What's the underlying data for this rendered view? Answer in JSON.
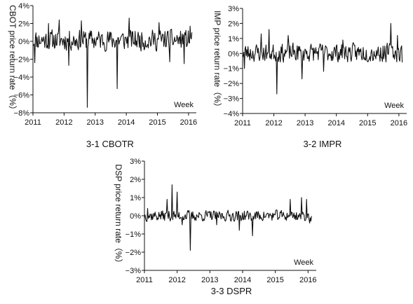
{
  "chart_data": [
    {
      "id": "cbotr",
      "type": "line",
      "ylabel": "CBOT price return rate（%）",
      "caption": "3-1 CBOTR",
      "week_label": "Week",
      "ylim": [
        -8,
        4
      ],
      "yticks": [
        -8,
        -6,
        -4,
        -2,
        0,
        2,
        4
      ],
      "ytick_labels": [
        "−8%",
        "−6%",
        "−4%",
        "−2%",
        "0%",
        "2%",
        "4%"
      ],
      "xlim": [
        2011,
        2016.25
      ],
      "xticks": [
        2011,
        2012,
        2013,
        2014,
        2015,
        2016
      ],
      "xtick_labels": [
        "2011",
        "2012",
        "2013",
        "2014",
        "2015",
        "2016"
      ],
      "x_start": 2011.0,
      "x_step": 0.0192,
      "amp": 0.85,
      "offset": 0.15,
      "seed": 11,
      "spikes": [
        {
          "x": 2011.05,
          "y": -2.4
        },
        {
          "x": 2011.5,
          "y": 2.0
        },
        {
          "x": 2011.85,
          "y": 2.4
        },
        {
          "x": 2012.15,
          "y": -2.7
        },
        {
          "x": 2012.55,
          "y": 2.3
        },
        {
          "x": 2012.75,
          "y": -7.4
        },
        {
          "x": 2013.7,
          "y": -5.3
        },
        {
          "x": 2014.1,
          "y": 2.6
        },
        {
          "x": 2015.05,
          "y": 2.1
        },
        {
          "x": 2015.4,
          "y": -2.3
        },
        {
          "x": 2015.85,
          "y": -2.5
        },
        {
          "x": 2016.05,
          "y": 1.7
        }
      ]
    },
    {
      "id": "impr",
      "type": "line",
      "ylabel": "IMP price return rate（%）",
      "caption": "3-2 IMPR",
      "week_label": "Week",
      "ylim": [
        -4,
        3
      ],
      "yticks": [
        -4,
        -3,
        -2,
        -1,
        0,
        1,
        2,
        3
      ],
      "ytick_labels": [
        "−4%",
        "−3%",
        "−2%",
        "−1%",
        "0%",
        "1%",
        "2%",
        "3%"
      ],
      "xlim": [
        2011,
        2016.25
      ],
      "xticks": [
        2011,
        2012,
        2013,
        2014,
        2015,
        2016
      ],
      "xtick_labels": [
        "2011",
        "2012",
        "2013",
        "2014",
        "2015",
        "2016"
      ],
      "x_start": 2011.0,
      "x_step": 0.0192,
      "amp": 0.45,
      "offset": 0.05,
      "seed": 23,
      "spikes": [
        {
          "x": 2011.05,
          "y": -1.0
        },
        {
          "x": 2011.6,
          "y": 1.3
        },
        {
          "x": 2011.85,
          "y": 1.6
        },
        {
          "x": 2012.1,
          "y": -2.7
        },
        {
          "x": 2012.45,
          "y": 1.2
        },
        {
          "x": 2012.9,
          "y": -1.7
        },
        {
          "x": 2013.6,
          "y": -1.2
        },
        {
          "x": 2014.2,
          "y": 0.9
        },
        {
          "x": 2015.75,
          "y": 2.0
        },
        {
          "x": 2015.95,
          "y": 1.2
        },
        {
          "x": 2016.1,
          "y": -0.6
        }
      ]
    },
    {
      "id": "dspr",
      "type": "line",
      "ylabel": "DSP price return rate（%）",
      "caption": "3-3 DSPR",
      "week_label": "Week",
      "ylim": [
        -3,
        3
      ],
      "yticks": [
        -3,
        -2,
        -1,
        0,
        1,
        2,
        3
      ],
      "ytick_labels": [
        "−3%",
        "−2%",
        "−1%",
        "0%",
        "1%",
        "2%",
        "3%"
      ],
      "xlim": [
        2011,
        2016.25
      ],
      "xticks": [
        2011,
        2012,
        2013,
        2014,
        2015,
        2016
      ],
      "xtick_labels": [
        "2011",
        "2012",
        "2013",
        "2014",
        "2015",
        "2016"
      ],
      "x_start": 2011.0,
      "x_step": 0.0192,
      "amp": 0.22,
      "offset": 0.0,
      "seed": 37,
      "spikes": [
        {
          "x": 2011.1,
          "y": 0.4
        },
        {
          "x": 2011.7,
          "y": 0.9
        },
        {
          "x": 2011.85,
          "y": 1.7
        },
        {
          "x": 2012.0,
          "y": 1.3
        },
        {
          "x": 2012.15,
          "y": -0.5
        },
        {
          "x": 2012.4,
          "y": -1.9
        },
        {
          "x": 2013.2,
          "y": -0.5
        },
        {
          "x": 2013.9,
          "y": -0.8
        },
        {
          "x": 2014.3,
          "y": -1.1
        },
        {
          "x": 2015.45,
          "y": 0.9
        },
        {
          "x": 2015.8,
          "y": 1.0
        },
        {
          "x": 2015.95,
          "y": 0.9
        },
        {
          "x": 2016.05,
          "y": -0.4
        }
      ]
    }
  ]
}
